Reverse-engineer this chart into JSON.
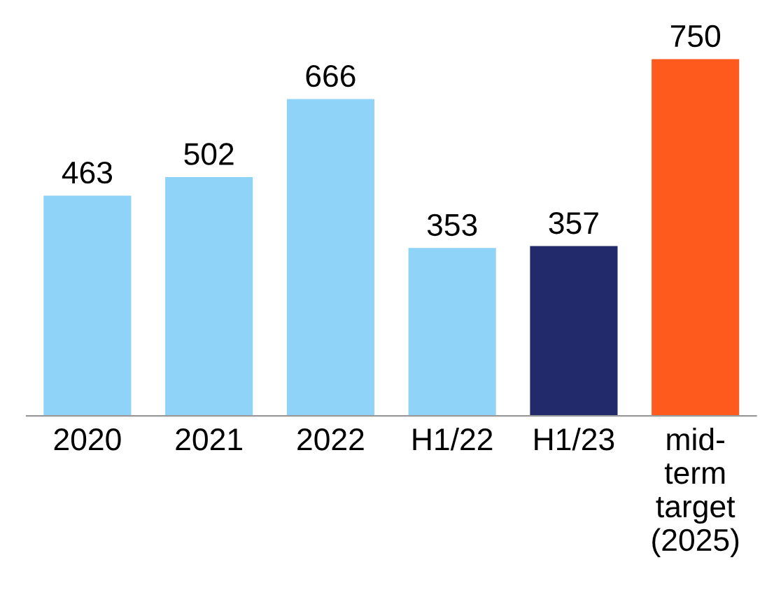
{
  "chart_data": {
    "type": "bar",
    "categories": [
      "2020",
      "2021",
      "2022",
      "H1/22",
      "H1/23",
      "mid-\nterm\ntarget\n(2025)"
    ],
    "values": [
      463,
      502,
      666,
      353,
      357,
      750
    ],
    "colors": [
      "#8fd3f8",
      "#8fd3f8",
      "#8fd3f8",
      "#8fd3f8",
      "#232a6c",
      "#ff5a1e"
    ],
    "data_labels": true,
    "grid": false,
    "legend": false
  }
}
